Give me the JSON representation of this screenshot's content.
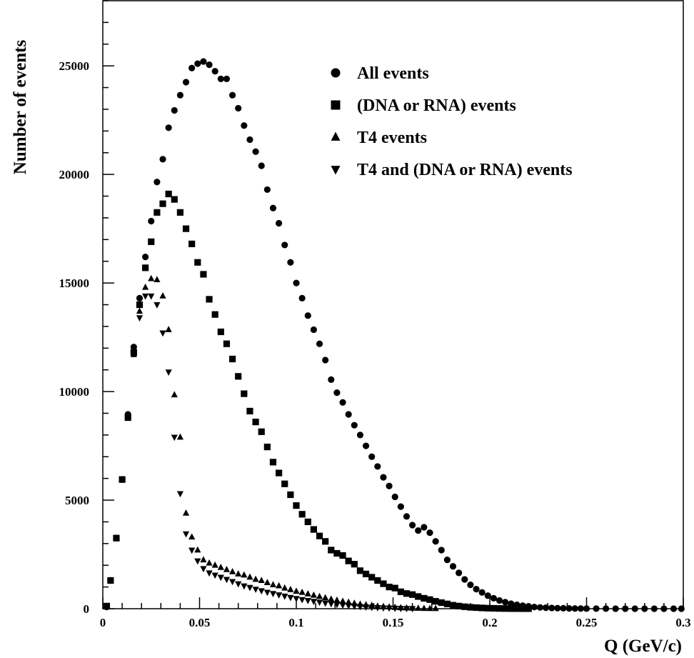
{
  "chart_data": {
    "type": "scatter",
    "title": "",
    "xlabel": "Q (GeV/c)",
    "ylabel": "Number of events",
    "xlim": [
      0,
      0.3
    ],
    "ylim": [
      0,
      28000
    ],
    "x_ticks": [
      "0",
      "0.05",
      "0.1",
      "0.15",
      "0.2",
      "0.25",
      "0.3"
    ],
    "y_ticks": [
      "0",
      "5000",
      "10000",
      "15000",
      "20000",
      "25000"
    ],
    "grid": false,
    "legend_position": "top-right",
    "series": [
      {
        "name": "All events",
        "marker": "circle",
        "points": [
          [
            0.002,
            80
          ],
          [
            0.004,
            1300
          ],
          [
            0.007,
            3250
          ],
          [
            0.01,
            5950
          ],
          [
            0.013,
            8950
          ],
          [
            0.016,
            12050
          ],
          [
            0.019,
            14300
          ],
          [
            0.022,
            16200
          ],
          [
            0.025,
            17850
          ],
          [
            0.028,
            19650
          ],
          [
            0.031,
            20700
          ],
          [
            0.034,
            22150
          ],
          [
            0.037,
            22950
          ],
          [
            0.04,
            23650
          ],
          [
            0.043,
            24250
          ],
          [
            0.046,
            24900
          ],
          [
            0.049,
            25100
          ],
          [
            0.052,
            25200
          ],
          [
            0.055,
            25050
          ],
          [
            0.058,
            24750
          ],
          [
            0.061,
            24400
          ],
          [
            0.064,
            24400
          ],
          [
            0.067,
            23650
          ],
          [
            0.07,
            23050
          ],
          [
            0.073,
            22250
          ],
          [
            0.076,
            21600
          ],
          [
            0.079,
            21050
          ],
          [
            0.082,
            20400
          ],
          [
            0.085,
            19300
          ],
          [
            0.088,
            18450
          ],
          [
            0.091,
            17750
          ],
          [
            0.094,
            16750
          ],
          [
            0.097,
            15950
          ],
          [
            0.1,
            15000
          ],
          [
            0.103,
            14300
          ],
          [
            0.106,
            13500
          ],
          [
            0.109,
            12850
          ],
          [
            0.112,
            12200
          ],
          [
            0.115,
            11450
          ],
          [
            0.118,
            10550
          ],
          [
            0.121,
            9950
          ],
          [
            0.124,
            9500
          ],
          [
            0.127,
            8950
          ],
          [
            0.13,
            8450
          ],
          [
            0.133,
            8000
          ],
          [
            0.136,
            7500
          ],
          [
            0.139,
            7000
          ],
          [
            0.142,
            6550
          ],
          [
            0.145,
            6050
          ],
          [
            0.148,
            5650
          ],
          [
            0.151,
            5150
          ],
          [
            0.154,
            4700
          ],
          [
            0.157,
            4250
          ],
          [
            0.16,
            3850
          ],
          [
            0.163,
            3600
          ],
          [
            0.166,
            3750
          ],
          [
            0.169,
            3500
          ],
          [
            0.172,
            3100
          ],
          [
            0.175,
            2700
          ],
          [
            0.178,
            2250
          ],
          [
            0.181,
            1950
          ],
          [
            0.184,
            1650
          ],
          [
            0.187,
            1350
          ],
          [
            0.19,
            1100
          ],
          [
            0.193,
            900
          ],
          [
            0.196,
            750
          ],
          [
            0.199,
            600
          ],
          [
            0.202,
            480
          ],
          [
            0.205,
            380
          ],
          [
            0.208,
            300
          ],
          [
            0.211,
            230
          ],
          [
            0.214,
            180
          ],
          [
            0.217,
            140
          ],
          [
            0.22,
            110
          ],
          [
            0.223,
            80
          ],
          [
            0.226,
            60
          ],
          [
            0.229,
            45
          ],
          [
            0.232,
            35
          ],
          [
            0.235,
            25
          ],
          [
            0.238,
            20
          ],
          [
            0.241,
            15
          ],
          [
            0.244,
            10
          ],
          [
            0.247,
            8
          ],
          [
            0.25,
            6
          ],
          [
            0.255,
            4
          ],
          [
            0.26,
            3
          ],
          [
            0.265,
            2
          ],
          [
            0.27,
            2
          ],
          [
            0.275,
            1
          ],
          [
            0.28,
            1
          ],
          [
            0.285,
            1
          ],
          [
            0.29,
            1
          ],
          [
            0.295,
            0
          ],
          [
            0.299,
            0
          ]
        ]
      },
      {
        "name": "(DNA or RNA) events",
        "marker": "square",
        "points": [
          [
            0.002,
            120
          ],
          [
            0.004,
            1300
          ],
          [
            0.007,
            3250
          ],
          [
            0.01,
            5950
          ],
          [
            0.013,
            8800
          ],
          [
            0.016,
            11800
          ],
          [
            0.019,
            14000
          ],
          [
            0.022,
            15700
          ],
          [
            0.025,
            16900
          ],
          [
            0.028,
            18250
          ],
          [
            0.031,
            18650
          ],
          [
            0.034,
            19100
          ],
          [
            0.037,
            18850
          ],
          [
            0.04,
            18250
          ],
          [
            0.043,
            17500
          ],
          [
            0.046,
            16800
          ],
          [
            0.049,
            15950
          ],
          [
            0.052,
            15400
          ],
          [
            0.055,
            14250
          ],
          [
            0.058,
            13550
          ],
          [
            0.061,
            12750
          ],
          [
            0.064,
            12200
          ],
          [
            0.067,
            11500
          ],
          [
            0.07,
            10700
          ],
          [
            0.073,
            9900
          ],
          [
            0.076,
            9100
          ],
          [
            0.079,
            8600
          ],
          [
            0.082,
            8150
          ],
          [
            0.085,
            7450
          ],
          [
            0.088,
            6750
          ],
          [
            0.091,
            6250
          ],
          [
            0.094,
            5750
          ],
          [
            0.097,
            5250
          ],
          [
            0.1,
            4750
          ],
          [
            0.103,
            4350
          ],
          [
            0.106,
            4000
          ],
          [
            0.109,
            3650
          ],
          [
            0.112,
            3350
          ],
          [
            0.115,
            3100
          ],
          [
            0.118,
            2700
          ],
          [
            0.121,
            2550
          ],
          [
            0.124,
            2450
          ],
          [
            0.127,
            2200
          ],
          [
            0.13,
            2050
          ],
          [
            0.133,
            1750
          ],
          [
            0.136,
            1600
          ],
          [
            0.139,
            1450
          ],
          [
            0.142,
            1300
          ],
          [
            0.145,
            1150
          ],
          [
            0.148,
            1000
          ],
          [
            0.151,
            950
          ],
          [
            0.154,
            780
          ],
          [
            0.157,
            700
          ],
          [
            0.16,
            650
          ],
          [
            0.163,
            560
          ],
          [
            0.166,
            480
          ],
          [
            0.169,
            420
          ],
          [
            0.172,
            340
          ],
          [
            0.175,
            280
          ],
          [
            0.178,
            220
          ],
          [
            0.181,
            160
          ],
          [
            0.184,
            120
          ],
          [
            0.187,
            90
          ],
          [
            0.19,
            65
          ],
          [
            0.193,
            50
          ],
          [
            0.196,
            35
          ],
          [
            0.199,
            25
          ],
          [
            0.202,
            18
          ],
          [
            0.205,
            12
          ],
          [
            0.208,
            8
          ],
          [
            0.211,
            5
          ],
          [
            0.214,
            4
          ],
          [
            0.217,
            3
          ],
          [
            0.22,
            2
          ]
        ]
      },
      {
        "name": "T4 events",
        "marker": "triangle-up",
        "points": [
          [
            0.002,
            100
          ],
          [
            0.004,
            1300
          ],
          [
            0.007,
            3250
          ],
          [
            0.01,
            5950
          ],
          [
            0.013,
            8850
          ],
          [
            0.016,
            11700
          ],
          [
            0.019,
            13700
          ],
          [
            0.022,
            14800
          ],
          [
            0.025,
            15200
          ],
          [
            0.028,
            15150
          ],
          [
            0.031,
            14400
          ],
          [
            0.034,
            12850
          ],
          [
            0.037,
            9850
          ],
          [
            0.04,
            7900
          ],
          [
            0.043,
            4400
          ],
          [
            0.046,
            3300
          ],
          [
            0.049,
            2700
          ],
          [
            0.052,
            2250
          ],
          [
            0.055,
            2100
          ],
          [
            0.058,
            2000
          ],
          [
            0.061,
            1900
          ],
          [
            0.064,
            1800
          ],
          [
            0.067,
            1700
          ],
          [
            0.07,
            1600
          ],
          [
            0.073,
            1550
          ],
          [
            0.076,
            1450
          ],
          [
            0.079,
            1350
          ],
          [
            0.082,
            1300
          ],
          [
            0.085,
            1200
          ],
          [
            0.088,
            1100
          ],
          [
            0.091,
            1050
          ],
          [
            0.094,
            950
          ],
          [
            0.097,
            880
          ],
          [
            0.1,
            800
          ],
          [
            0.103,
            750
          ],
          [
            0.106,
            680
          ],
          [
            0.109,
            620
          ],
          [
            0.112,
            560
          ],
          [
            0.115,
            500
          ],
          [
            0.118,
            440
          ],
          [
            0.121,
            390
          ],
          [
            0.124,
            340
          ],
          [
            0.127,
            300
          ],
          [
            0.13,
            250
          ],
          [
            0.133,
            210
          ],
          [
            0.136,
            180
          ],
          [
            0.139,
            150
          ],
          [
            0.142,
            120
          ],
          [
            0.145,
            100
          ],
          [
            0.148,
            80
          ],
          [
            0.151,
            60
          ],
          [
            0.154,
            45
          ],
          [
            0.157,
            35
          ],
          [
            0.16,
            25
          ],
          [
            0.163,
            18
          ],
          [
            0.166,
            12
          ],
          [
            0.169,
            8
          ],
          [
            0.172,
            5
          ]
        ]
      },
      {
        "name": "T4 and (DNA or RNA) events",
        "marker": "triangle-down",
        "points": [
          [
            0.019,
            13400
          ],
          [
            0.022,
            14400
          ],
          [
            0.025,
            14400
          ],
          [
            0.028,
            14000
          ],
          [
            0.031,
            12700
          ],
          [
            0.034,
            10900
          ],
          [
            0.037,
            7900
          ],
          [
            0.04,
            5300
          ],
          [
            0.043,
            3450
          ],
          [
            0.046,
            2700
          ],
          [
            0.049,
            2200
          ],
          [
            0.052,
            1850
          ],
          [
            0.055,
            1650
          ],
          [
            0.058,
            1550
          ],
          [
            0.061,
            1450
          ],
          [
            0.064,
            1350
          ],
          [
            0.067,
            1250
          ],
          [
            0.07,
            1150
          ],
          [
            0.073,
            1050
          ],
          [
            0.076,
            980
          ],
          [
            0.079,
            900
          ],
          [
            0.082,
            830
          ],
          [
            0.085,
            760
          ],
          [
            0.088,
            700
          ],
          [
            0.091,
            640
          ],
          [
            0.094,
            580
          ],
          [
            0.097,
            520
          ],
          [
            0.1,
            470
          ],
          [
            0.103,
            420
          ],
          [
            0.106,
            380
          ],
          [
            0.109,
            340
          ],
          [
            0.112,
            300
          ],
          [
            0.115,
            260
          ],
          [
            0.118,
            230
          ],
          [
            0.121,
            200
          ],
          [
            0.124,
            170
          ],
          [
            0.127,
            145
          ],
          [
            0.13,
            120
          ],
          [
            0.133,
            100
          ],
          [
            0.136,
            80
          ],
          [
            0.139,
            65
          ],
          [
            0.142,
            50
          ],
          [
            0.145,
            40
          ],
          [
            0.148,
            30
          ],
          [
            0.151,
            22
          ],
          [
            0.154,
            15
          ],
          [
            0.157,
            10
          ],
          [
            0.16,
            6
          ]
        ]
      }
    ]
  }
}
